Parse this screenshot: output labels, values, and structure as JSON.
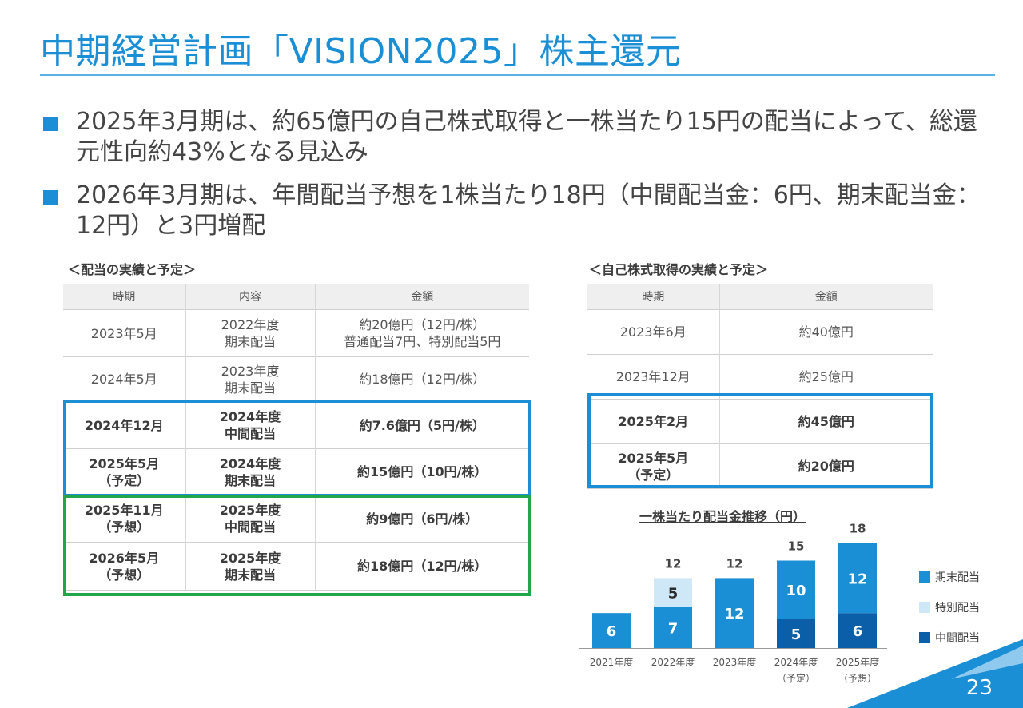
{
  "header": {
    "title": "中期経営計画「VISION2025」株主還元"
  },
  "bullets": [
    "2025年3月期は、約65億円の自己株式取得と一株当たり15円の配当によって、総還元性向約43%となる見込み",
    "2026年3月期は、年間配当予想を1株当たり18円（中間配当金：6円、期末配当金：12円）と3円増配"
  ],
  "dividend_table": {
    "title": "＜配当の実績と予定＞",
    "headers": [
      "時期",
      "内容",
      "金額"
    ],
    "rows": [
      {
        "period": "2023年5月",
        "content": [
          "2022年度",
          "期末配当"
        ],
        "amount": [
          "約20億円（12円/株）",
          "普通配当7円、特別配当5円"
        ]
      },
      {
        "period": "2024年5月",
        "content": [
          "2023年度",
          "期末配当"
        ],
        "amount": [
          "約18億円（12円/株）"
        ]
      },
      {
        "period": "2024年12月",
        "content": [
          "2024年度",
          "中間配当"
        ],
        "amount": [
          "約7.6億円（5円/株）"
        ]
      },
      {
        "period": "2025年5月\n（予定）",
        "content": [
          "2024年度",
          "期末配当"
        ],
        "amount": [
          "約15億円（10円/株）"
        ]
      },
      {
        "period": "2025年11月\n（予想）",
        "content": [
          "2025年度",
          "中間配当"
        ],
        "amount": [
          "約9億円（6円/株）"
        ]
      },
      {
        "period": "2026年5月\n（予想）",
        "content": [
          "2025年度",
          "期末配当"
        ],
        "amount": [
          "約18億円（12円/株）"
        ]
      }
    ]
  },
  "buyback_table": {
    "title": "＜自己株式取得の実績と予定＞",
    "headers": [
      "時期",
      "金額"
    ],
    "rows": [
      {
        "period": "2023年6月",
        "amount": "約40億円"
      },
      {
        "period": "2023年12月",
        "amount": "約25億円"
      },
      {
        "period": "2025年2月",
        "amount": "約45億円"
      },
      {
        "period": "2025年5月\n（予定）",
        "amount": "約20億円"
      }
    ]
  },
  "chart_data": {
    "type": "bar",
    "title": "一株当たり配当金推移（円）",
    "categories": [
      "2021年度",
      "2022年度",
      "2023年度",
      "2024年度\n（予定）",
      "2025年度\n（予想）"
    ],
    "series": [
      {
        "name": "中間配当",
        "values": [
          0,
          0,
          0,
          5,
          6
        ],
        "color": "#0a5fa8"
      },
      {
        "name": "期末配当",
        "values": [
          6,
          7,
          12,
          10,
          12
        ],
        "color": "#1a8fd6"
      },
      {
        "name": "特別配当",
        "values": [
          0,
          5,
          0,
          0,
          0
        ],
        "color": "#cfe8f8"
      }
    ],
    "totals": [
      6,
      12,
      12,
      15,
      18
    ],
    "legend": [
      "期末配当",
      "特別配当",
      "中間配当"
    ],
    "legend_position": "right",
    "stacked": true
  },
  "colors": {
    "accent": "#1a8fd6",
    "green": "#22a64a",
    "dark": "#0a5fa8",
    "light": "#cfe8f8"
  },
  "page_number": "23"
}
